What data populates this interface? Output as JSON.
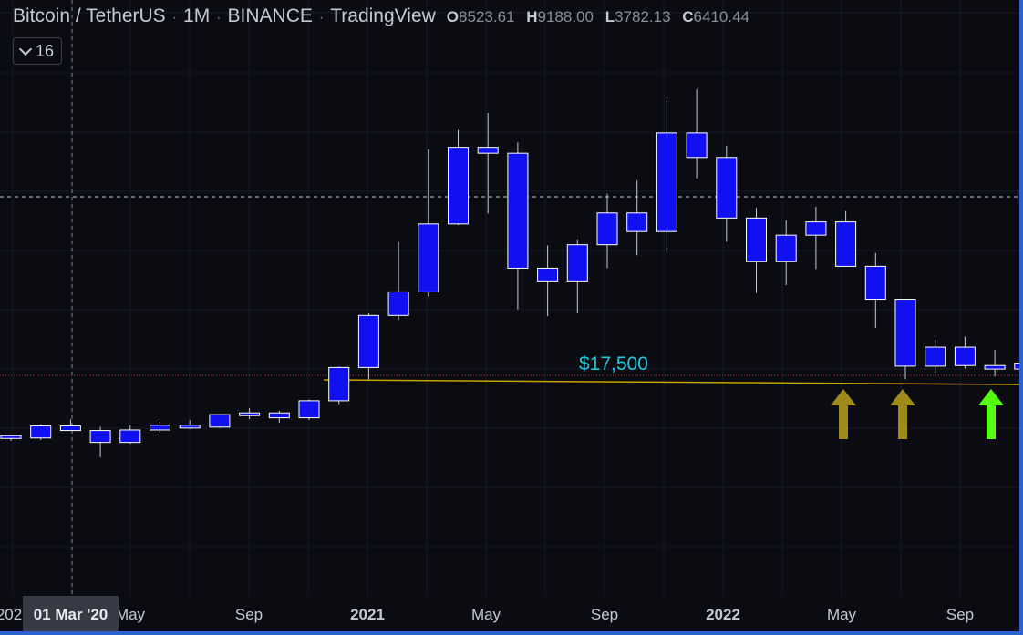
{
  "header": {
    "symbol": "Bitcoin / TetherUS",
    "interval": "1M",
    "exchange": "BINANCE",
    "provider": "TradingView",
    "ohlc": [
      {
        "key": "O",
        "value": "8523.61"
      },
      {
        "key": "H",
        "value": "9188.00"
      },
      {
        "key": "L",
        "value": "3782.13"
      },
      {
        "key": "C",
        "value": "6410.44"
      }
    ]
  },
  "indicator_toggle": {
    "count": "16",
    "icon": "chevron-down-icon"
  },
  "level_label": "$17,500",
  "crosshair_date": "01 Mar '20",
  "x_axis": {
    "ticks": [
      {
        "label": "202",
        "bold": false
      },
      {
        "label": "May",
        "bold": false
      },
      {
        "label": "Sep",
        "bold": false
      },
      {
        "label": "2021",
        "bold": true
      },
      {
        "label": "May",
        "bold": false
      },
      {
        "label": "Sep",
        "bold": false
      },
      {
        "label": "2022",
        "bold": true
      },
      {
        "label": "May",
        "bold": false
      },
      {
        "label": "Sep",
        "bold": false
      }
    ]
  },
  "colors": {
    "candle_fill": "#1010f0",
    "candle_border": "#ffffff",
    "support_line": "#c8a400",
    "arrow_olive": "#a08a1c",
    "arrow_green": "#55ff11",
    "level_text": "#26c6da",
    "price_dotted": "#b03030"
  },
  "annotations": {
    "arrows": [
      {
        "color": "olive",
        "direction": "up"
      },
      {
        "color": "olive",
        "direction": "up"
      },
      {
        "color": "green",
        "direction": "up"
      }
    ]
  },
  "chart_data": {
    "type": "candlestick",
    "x": [
      "2019-12",
      "2020-01",
      "2020-02",
      "2020-03",
      "2020-04",
      "2020-05",
      "2020-06",
      "2020-07",
      "2020-08",
      "2020-09",
      "2020-10",
      "2020-11",
      "2020-12",
      "2021-01",
      "2021-02",
      "2021-03",
      "2021-04",
      "2021-05",
      "2021-06",
      "2021-07",
      "2021-08",
      "2021-09",
      "2021-10",
      "2021-11",
      "2021-12",
      "2022-01",
      "2022-02",
      "2022-03",
      "2022-04",
      "2022-05",
      "2022-06",
      "2022-07",
      "2022-08",
      "2022-09",
      "2022-10"
    ],
    "open": [
      7600,
      7200,
      9350,
      8520,
      6410,
      8620,
      9450,
      9135,
      11350,
      11650,
      10780,
      13800,
      19700,
      28920,
      33100,
      45150,
      58750,
      57700,
      37300,
      35050,
      41460,
      47100,
      43800,
      61300,
      56950,
      46200,
      38460,
      43160,
      45510,
      37630,
      31790,
      19940,
      23300,
      20050,
      19420
    ],
    "close": [
      7200,
      9350,
      8520,
      6410,
      8620,
      9450,
      9135,
      11350,
      11650,
      10780,
      13800,
      19700,
      28920,
      33100,
      45150,
      58750,
      57700,
      37300,
      35050,
      41460,
      47100,
      43800,
      61300,
      56950,
      46200,
      38460,
      43160,
      45510,
      37630,
      31790,
      19940,
      23300,
      20050,
      19420,
      20490
    ],
    "high": [
      7700,
      9600,
      10500,
      9180,
      9460,
      10070,
      10380,
      11440,
      12470,
      12050,
      14000,
      19860,
      29300,
      41950,
      58350,
      61800,
      64850,
      59600,
      41330,
      42400,
      50500,
      52900,
      67000,
      69000,
      59050,
      47990,
      45800,
      48200,
      47450,
      40000,
      31900,
      24650,
      25200,
      22800,
      21000
    ],
    "low": [
      6700,
      6850,
      8450,
      3782,
      6150,
      8120,
      8830,
      8990,
      10520,
      9880,
      10370,
      13200,
      17570,
      28130,
      32300,
      44950,
      47000,
      30000,
      28800,
      29270,
      37300,
      39580,
      40000,
      53250,
      42000,
      32900,
      34300,
      37150,
      37560,
      26700,
      17620,
      18780,
      19520,
      18130,
      18800
    ],
    "level": 17500
  }
}
